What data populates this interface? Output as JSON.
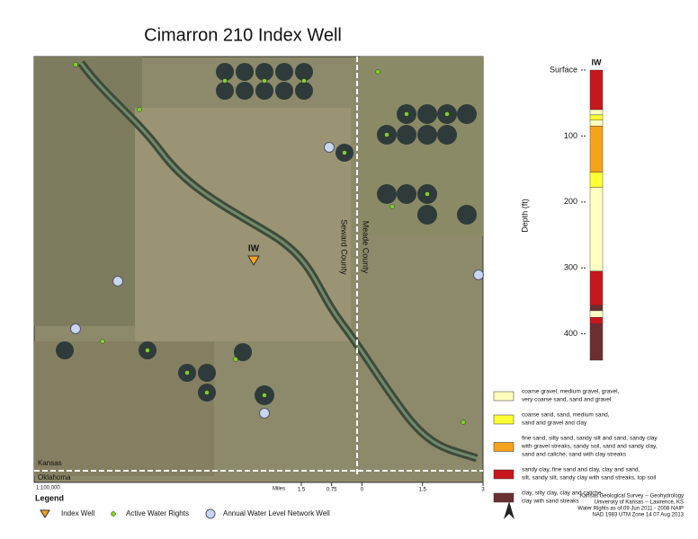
{
  "title": "Cimarron 210 Index Well",
  "map": {
    "index_well_label": "IW",
    "counties": [
      "Seward County",
      "Meade County"
    ],
    "states": [
      "Kansas",
      "Oklahoma"
    ],
    "scale_ratio": "1:100,000",
    "scale_bar": {
      "unit": "Miles",
      "ticks": [
        {
          "value": -1.5,
          "label": "1.5"
        },
        {
          "value": -0.75,
          "label": "0.75"
        },
        0,
        1.5,
        3
      ]
    }
  },
  "well_log": {
    "label": "IW",
    "axis_label": "Depth (ft)",
    "ylim": [
      0,
      440
    ],
    "yticks": [
      {
        "value": 0,
        "label": "Surface"
      },
      100,
      200,
      300,
      400
    ],
    "layers": [
      {
        "top": 0,
        "bottom": 60,
        "color": "#c8161d"
      },
      {
        "top": 60,
        "bottom": 68,
        "color": "#ffffc0"
      },
      {
        "top": 68,
        "bottom": 76,
        "color": "#ffff33"
      },
      {
        "top": 76,
        "bottom": 85,
        "color": "#ffffc0"
      },
      {
        "top": 85,
        "bottom": 155,
        "color": "#f5a31a"
      },
      {
        "top": 155,
        "bottom": 178,
        "color": "#ffff33"
      },
      {
        "top": 178,
        "bottom": 305,
        "color": "#ffffc0"
      },
      {
        "top": 305,
        "bottom": 357,
        "color": "#c8161d"
      },
      {
        "top": 357,
        "bottom": 365,
        "color": "#6b2f2f"
      },
      {
        "top": 365,
        "bottom": 375,
        "color": "#ffffc0"
      },
      {
        "top": 375,
        "bottom": 385,
        "color": "#c8161d"
      },
      {
        "top": 385,
        "bottom": 440,
        "color": "#6b2f2f"
      }
    ]
  },
  "lithology_legend": [
    {
      "color": "#ffffc0",
      "lines": [
        "coarse gravel, medium gravel, gravel,",
        "very coarse sand, sand and gravel"
      ]
    },
    {
      "color": "#ffff33",
      "lines": [
        "coarse sand, sand, medium sand,",
        "sand and gravel and clay"
      ]
    },
    {
      "color": "#f5a31a",
      "lines": [
        "fine sand, silty sand, sandy silt and sand, sandy clay",
        "with gravel streaks, sandy soil, sand and sandy clay,",
        "sand and caliche, sand with clay streaks"
      ]
    },
    {
      "color": "#c8161d",
      "lines": [
        "sandy clay, fine sand and clay, clay and sand,",
        "silt, sandy silt, sandy clay with sand streaks, top soil"
      ]
    },
    {
      "color": "#6b2f2f",
      "lines": [
        "clay, silty clay, clay and caliche,",
        "clay with sand streaks"
      ]
    }
  ],
  "legend": {
    "title": "Legend",
    "items": [
      "Index Well",
      "Active Water Rights",
      "Annual Water Level Network Well"
    ]
  },
  "credits": [
    "Kansas Geological Survey -- Geohydrology",
    "University of Kansas -- Lawrence, KS",
    "Water Rights as of 09 Jun 2011 - 2008 NAIP",
    "NAD 1983 UTM Zone 14   07 Aug 2013"
  ]
}
